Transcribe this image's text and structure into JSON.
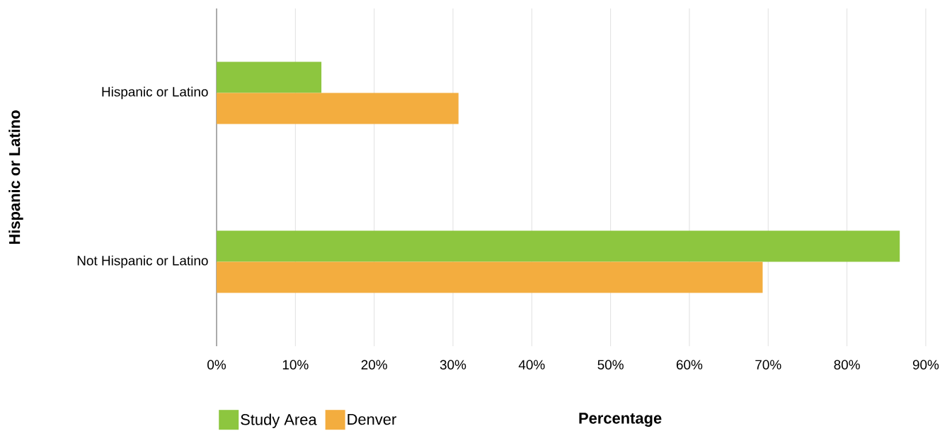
{
  "chart_data": {
    "type": "bar",
    "orientation": "horizontal",
    "categories": [
      "Hispanic or Latino",
      "Not Hispanic or Latino"
    ],
    "series": [
      {
        "name": "Study Area",
        "color": "#8dc63f",
        "values": [
          13.3,
          86.7
        ]
      },
      {
        "name": "Denver",
        "color": "#f3ad3f",
        "values": [
          30.7,
          69.3
        ]
      }
    ],
    "xlim": [
      0,
      90
    ],
    "xticks": [
      {
        "value": 0,
        "label": "0%"
      },
      {
        "value": 10,
        "label": "10%"
      },
      {
        "value": 20,
        "label": "20%"
      },
      {
        "value": 30,
        "label": "30%"
      },
      {
        "value": 40,
        "label": "40%"
      },
      {
        "value": 50,
        "label": "50%"
      },
      {
        "value": 60,
        "label": "60%"
      },
      {
        "value": 70,
        "label": "70%"
      },
      {
        "value": 80,
        "label": "80%"
      },
      {
        "value": 90,
        "label": "90%"
      }
    ],
    "xlabel": "Percentage",
    "ylabel": "Hispanic or Latino",
    "grid": "x",
    "legend": "bottom left"
  }
}
